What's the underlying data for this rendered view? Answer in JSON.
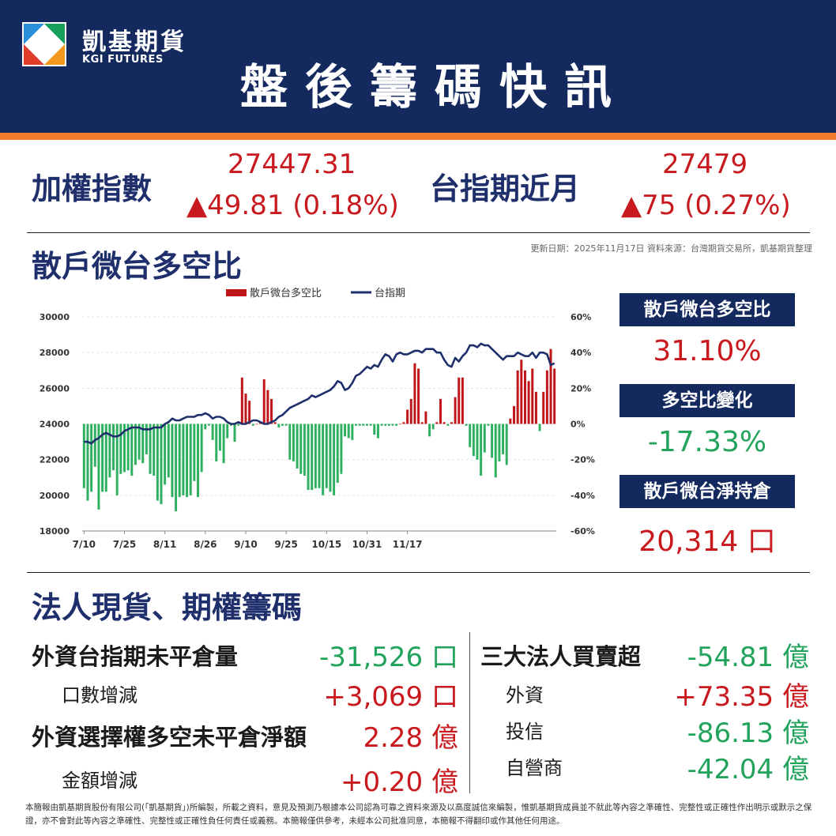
{
  "header": {
    "brand_cn": "凱基期貨",
    "brand_en": "KGI FUTURES",
    "title": "盤後籌碼快訊",
    "colors": {
      "navy": "#14295e",
      "orange": "#f07b2b"
    }
  },
  "index": {
    "label": "加權指數",
    "value": "27447.31",
    "change": "▲49.81 (0.18%)"
  },
  "futures": {
    "label": "台指期近月",
    "value": "27479",
    "change": "▲75 (0.27%)"
  },
  "section1": {
    "title": "散戶微台多空比",
    "note": "更新日期：2025年11月17日 資料來源：台灣期貨交易所，凱基期貨整理"
  },
  "side_stats": {
    "ratio_label": "散戶微台多空比",
    "ratio_value": "31.10%",
    "change_label": "多空比變化",
    "change_value": "-17.33%",
    "position_label": "散戶微台淨持倉",
    "position_value": "20,314 口"
  },
  "chart_data": {
    "type": "bar",
    "legend": [
      "散戶微台多空比",
      "台指期"
    ],
    "left_axis": {
      "ticks": [
        "30000",
        "28000",
        "26000",
        "24000",
        "22000",
        "20000",
        "18000"
      ],
      "ylim": [
        18000,
        30000
      ]
    },
    "right_axis": {
      "ticks": [
        "60%",
        "40%",
        "20%",
        "0%",
        "-20%",
        "-40%",
        "-60%"
      ],
      "ylim": [
        -60,
        60
      ]
    },
    "x_tick_labels": [
      "7/10",
      "7/25",
      "8/11",
      "8/26",
      "9/10",
      "9/25",
      "10/15",
      "10/31",
      "11/17"
    ],
    "x_tick_positions": [
      0,
      11,
      22,
      33,
      44,
      55,
      66,
      77,
      88
    ],
    "ratio_percent": [
      -36,
      -43,
      -38,
      -24,
      -48,
      -38,
      -38,
      -30,
      -26,
      -40,
      -28,
      -27,
      -26,
      -29,
      -23,
      -20,
      -22,
      -17,
      -28,
      -29,
      -43,
      -45,
      -34,
      -30,
      -41,
      -49,
      -41,
      -40,
      -41,
      -40,
      -32,
      -41,
      -27,
      -3,
      -1,
      -9,
      -21,
      -15,
      -22,
      -8,
      -1,
      -10,
      -1,
      26,
      17,
      13,
      -1,
      0,
      1,
      25,
      19,
      14,
      1,
      -2,
      -1,
      -1,
      -20,
      -21,
      -25,
      -28,
      -29,
      -37,
      -37,
      -36,
      -36,
      -40,
      -36,
      -38,
      -40,
      -33,
      -28,
      -7,
      -8,
      -9,
      -1,
      -1,
      -1,
      -1,
      -1,
      -6,
      -8,
      -1,
      -1,
      -1,
      -1,
      -1,
      0,
      1,
      8,
      14,
      34,
      31,
      1,
      7,
      -7,
      -3,
      1,
      14,
      1,
      -1,
      1,
      15,
      26,
      26,
      -1,
      -13,
      -18,
      -20,
      -29,
      -16,
      -1,
      -19,
      -30,
      -21,
      -17,
      -23,
      3,
      10,
      30,
      36,
      30,
      24,
      31,
      18,
      -4,
      18,
      30,
      42,
      31
    ],
    "index_values": [
      23000,
      23000,
      22900,
      23100,
      23200,
      23400,
      23500,
      23400,
      23300,
      23300,
      23400,
      23600,
      23700,
      23800,
      23800,
      23800,
      23700,
      23700,
      23700,
      23800,
      23800,
      23800,
      24000,
      24100,
      24300,
      24200,
      24200,
      24300,
      24400,
      24400,
      24400,
      24500,
      24500,
      24600,
      24500,
      24300,
      24400,
      24400,
      24300,
      24100,
      24000,
      24000,
      24100,
      24000,
      24000,
      24100,
      24200,
      24200,
      24100,
      24000,
      24000,
      24100,
      24200,
      24400,
      24500,
      24700,
      24900,
      25000,
      25100,
      25200,
      25300,
      25400,
      25600,
      25500,
      25600,
      25700,
      25800,
      25900,
      26100,
      26400,
      26300,
      25900,
      26000,
      26300,
      26700,
      26800,
      27000,
      27200,
      27100,
      27300,
      27200,
      27600,
      27900,
      27800,
      27500,
      27900,
      28000,
      27900,
      27900,
      28000,
      28100,
      28100,
      28000,
      28200,
      28200,
      28200,
      28000,
      28000,
      27600,
      27300,
      27200,
      27700,
      27500,
      27800,
      28000,
      28400,
      28400,
      28300,
      28500,
      28400,
      28400,
      28200,
      28000,
      27800,
      27600,
      27800,
      27800,
      27800,
      28000,
      27900,
      27800,
      27800,
      28000,
      27700,
      28000,
      28000,
      27900,
      27300,
      27400
    ]
  },
  "section2": {
    "title": "法人現貨、期權籌碼",
    "left": [
      {
        "label": "外資台指期未平倉量",
        "value": "-31,526 口",
        "color": "#21a35c",
        "kind": "main"
      },
      {
        "label": "口數增減",
        "value": "+3,069 口",
        "color": "#c8191e",
        "kind": "sub"
      },
      {
        "label": "外資選擇權多空未平倉淨額",
        "value": "2.28 億",
        "color": "#c8191e",
        "kind": "main"
      },
      {
        "label": "金額增減",
        "value": "+0.20 億",
        "color": "#c8191e",
        "kind": "sub"
      }
    ],
    "right": [
      {
        "label": "三大法人買賣超",
        "value": "-54.81 億",
        "color": "#21a35c",
        "kind": "main"
      },
      {
        "label": "外資",
        "value": "+73.35 億",
        "color": "#c8191e",
        "kind": "sub"
      },
      {
        "label": "投信",
        "value": "-86.13 億",
        "color": "#21a35c",
        "kind": "sub"
      },
      {
        "label": "自營商",
        "value": "-42.04 億",
        "color": "#21a35c",
        "kind": "sub"
      }
    ]
  },
  "footer": "本簡報由凱基期貨股份有限公司(「凱基期貨」)所編製，所載之資料，意見及預測乃根據本公司認為可靠之資料來源及以高度誠信來編製，惟凱基期貨成員並不就此等內容之準確性、完整性或正確性作出明示或默示之保證，亦不會對此等內容之準確性、完整性或正確性負任何責任或義務。本簡報僅供參考，未經本公司批准同意，本簡報不得翻印或作其他任何用途。"
}
